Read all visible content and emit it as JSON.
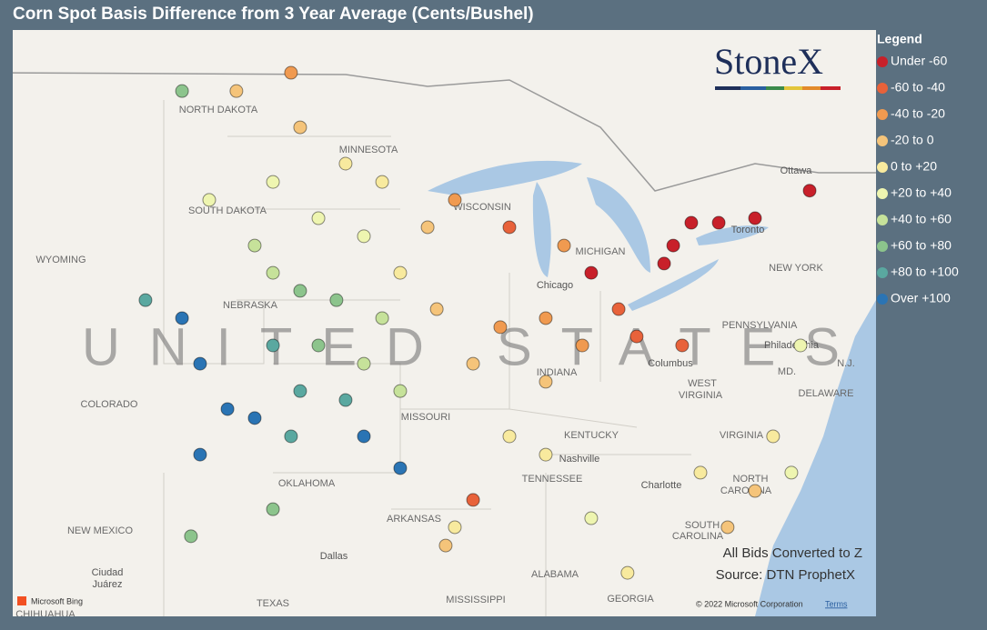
{
  "header": {
    "title": "Corn Spot Basis Difference from 3 Year Average (Cents/Bushel)"
  },
  "legend": {
    "title": "Legend",
    "items": [
      {
        "label": "Under -60",
        "color": "#c8202a"
      },
      {
        "label": "-60 to -40",
        "color": "#e8623a"
      },
      {
        "label": "-40 to -20",
        "color": "#f09a50"
      },
      {
        "label": "-20 to 0",
        "color": "#f5c47a"
      },
      {
        "label": "0 to +20",
        "color": "#f8ea9e"
      },
      {
        "label": "+20 to +40",
        "color": "#eef5b0"
      },
      {
        "label": "+40 to +60",
        "color": "#c6e29a"
      },
      {
        "label": "+60 to +80",
        "color": "#8cc48c"
      },
      {
        "label": "+80 to +100",
        "color": "#5aa8a0"
      },
      {
        "label": "Over +100",
        "color": "#2a74b4"
      }
    ]
  },
  "logo": "StoneX",
  "map_labels": [
    "NORTH DAKOTA",
    "MINNESOTA",
    "SOUTH DAKOTA",
    "WYOMING",
    "NEBRASKA",
    "COLORADO",
    "WISCONSIN",
    "MICHIGAN",
    "Chicago",
    "Ottawa",
    "Toronto",
    "NEW YORK",
    "PENNSYLVANIA",
    "Philadelphia",
    "MD.",
    "N.J.",
    "DELAWARE",
    "Columbus",
    "WEST",
    "VIRGINIA",
    "INDIANA",
    "MISSOURI",
    "KENTUCKY",
    "VIRGINIA",
    "Nashville",
    "TENNESSEE",
    "NORTH",
    "CAROLINA",
    "Charlotte",
    "OKLAHOMA",
    "ARKANSAS",
    "SOUTH",
    "CAROLINA",
    "NEW MEXICO",
    "Dallas",
    "ALABAMA",
    "GEORGIA",
    "MISSISSIPPI",
    "TEXAS",
    "Ciudad",
    "Juárez",
    "CHIHUAHUA",
    "UNITED STATES"
  ],
  "notes": [
    "All Bids Converted to Z",
    "Source: DTN ProphetX"
  ],
  "attribution": {
    "bing": "Microsoft Bing",
    "copyright": "© 2022 Microsoft Corporation",
    "terms": "Terms"
  },
  "points": [
    [
      -81.76,
      43.17,
      0
    ],
    [
      -80.95,
      43.93,
      0
    ],
    [
      -79.72,
      43.93,
      0
    ],
    [
      -78.09,
      44.08,
      0
    ],
    [
      -75.64,
      45.0,
      0
    ],
    [
      -85.44,
      42.26,
      0
    ],
    [
      -82.17,
      42.57,
      0
    ],
    [
      -84.21,
      41.05,
      1
    ],
    [
      -83.4,
      40.14,
      1
    ],
    [
      -85.84,
      39.84,
      2
    ],
    [
      -87.48,
      40.75,
      2
    ],
    [
      -89.52,
      40.45,
      2
    ],
    [
      -90.74,
      39.23,
      3
    ],
    [
      -92.37,
      41.05,
      3
    ],
    [
      -92.78,
      43.78,
      3
    ],
    [
      -91.56,
      44.69,
      2
    ],
    [
      -89.11,
      43.78,
      1
    ],
    [
      -86.66,
      43.17,
      2
    ],
    [
      -81.36,
      39.84,
      1
    ],
    [
      -87.48,
      38.63,
      3
    ],
    [
      -89.11,
      36.81,
      4
    ],
    [
      -90.74,
      34.69,
      1
    ],
    [
      -98.91,
      48.93,
      2
    ],
    [
      -101.36,
      48.32,
      3
    ],
    [
      -98.5,
      47.11,
      3
    ],
    [
      -96.46,
      45.9,
      4
    ],
    [
      -94.82,
      45.29,
      4
    ],
    [
      -99.72,
      45.29,
      5
    ],
    [
      -102.58,
      44.69,
      5
    ],
    [
      -100.54,
      43.17,
      6
    ],
    [
      -97.68,
      44.08,
      5
    ],
    [
      -95.64,
      43.48,
      5
    ],
    [
      -94.01,
      42.26,
      4
    ],
    [
      -94.82,
      40.75,
      6
    ],
    [
      -98.5,
      41.66,
      7
    ],
    [
      -99.72,
      42.26,
      6
    ],
    [
      -103.8,
      48.32,
      7
    ],
    [
      -105.44,
      41.35,
      8
    ],
    [
      -103.8,
      40.75,
      9
    ],
    [
      -102.99,
      39.23,
      9
    ],
    [
      -101.76,
      37.72,
      9
    ],
    [
      -102.99,
      36.2,
      9
    ],
    [
      -100.54,
      37.42,
      9
    ],
    [
      -98.91,
      36.81,
      8
    ],
    [
      -98.5,
      38.32,
      8
    ],
    [
      -96.46,
      38.02,
      8
    ],
    [
      -95.64,
      36.81,
      9
    ],
    [
      -94.01,
      35.75,
      9
    ],
    [
      -99.72,
      34.38,
      7
    ],
    [
      -103.4,
      33.48,
      7
    ],
    [
      -99.72,
      39.84,
      8
    ],
    [
      -97.68,
      39.84,
      7
    ],
    [
      -95.64,
      39.23,
      6
    ],
    [
      -94.01,
      38.32,
      6
    ],
    [
      -96.87,
      41.35,
      7
    ],
    [
      -87.48,
      36.2,
      4
    ],
    [
      -85.44,
      34.08,
      5
    ],
    [
      -83.81,
      32.26,
      4
    ],
    [
      -80.54,
      35.6,
      4
    ],
    [
      -78.09,
      34.99,
      3
    ],
    [
      -79.32,
      33.78,
      3
    ],
    [
      -76.46,
      35.6,
      5
    ],
    [
      -77.28,
      36.81,
      4
    ],
    [
      -76.05,
      39.84,
      5
    ],
    [
      -91.56,
      33.78,
      4
    ],
    [
      -91.97,
      33.17,
      3
    ]
  ]
}
